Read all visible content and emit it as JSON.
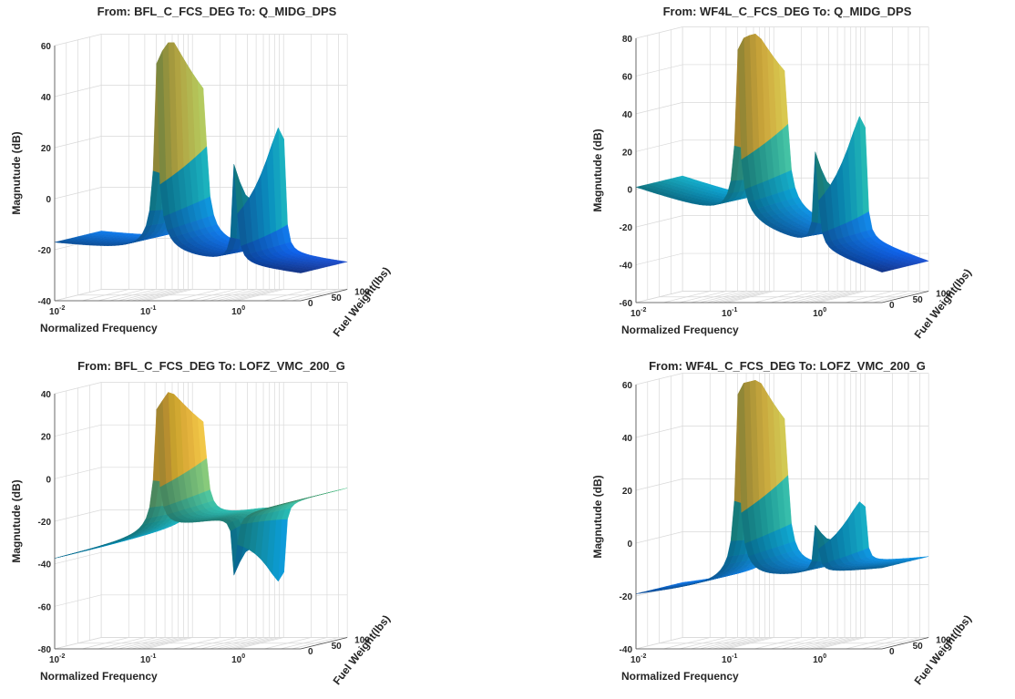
{
  "chart_data": [
    {
      "id": "p1",
      "type": "surface",
      "title": "From: BFL_C_FCS_DEG  To: Q_MIDG_DPS",
      "xlabel": "Normalized Frequency",
      "ylabel": "Fuel Weight(lbs)",
      "zlabel": "Magnutude (dB)",
      "x_scale": "log",
      "x_range": [
        0.01,
        5
      ],
      "x_ticks": [
        {
          "base": "10",
          "exp": "-2",
          "value": 0.01
        },
        {
          "base": "10",
          "exp": "-1",
          "value": 0.1
        },
        {
          "base": "10",
          "exp": "0",
          "value": 1
        }
      ],
      "y_range": [
        0,
        100
      ],
      "y_ticks": [
        "0",
        "50",
        "100"
      ],
      "z_range": [
        -40,
        60
      ],
      "z_ticks": [
        "-40",
        "-20",
        "0",
        "20",
        "40",
        "60"
      ],
      "colormap": "parula",
      "grid": true,
      "modes": [
        {
          "freq": 0.13,
          "peak_db": 62
        },
        {
          "freq": 0.95,
          "peak_db": 38
        }
      ],
      "low_freq_level_db": -18,
      "high_freq_level_db": -30
    },
    {
      "id": "p2",
      "type": "surface",
      "title": "From: WF4L_C_FCS_DEG  To: Q_MIDG_DPS",
      "xlabel": "Normalized Frequency",
      "ylabel": "Fuel Weight(lbs)",
      "zlabel": "Magnutude (dB)",
      "x_scale": "log",
      "x_range": [
        0.01,
        5
      ],
      "x_ticks": [
        {
          "base": "10",
          "exp": "-2",
          "value": 0.01
        },
        {
          "base": "10",
          "exp": "-1",
          "value": 0.1
        },
        {
          "base": "10",
          "exp": "0",
          "value": 1
        }
      ],
      "y_range": [
        0,
        100
      ],
      "y_ticks": [
        "0",
        "50",
        "100"
      ],
      "z_range": [
        -60,
        80
      ],
      "z_ticks": [
        "-60",
        "-40",
        "-20",
        "0",
        "20",
        "40",
        "60",
        "80"
      ],
      "colormap": "parula",
      "grid": true,
      "modes": [
        {
          "freq": 0.13,
          "peak_db": 85
        },
        {
          "freq": 0.95,
          "peak_db": 52
        }
      ],
      "low_freq_level_db": 0,
      "high_freq_level_db": -45
    },
    {
      "id": "p3",
      "type": "surface",
      "title": "From: BFL_C_FCS_DEG  To: LOFZ_VMC_200_G",
      "xlabel": "Normalized Frequency",
      "ylabel": "Fuel Weight(lbs)",
      "zlabel": "Magnutude (dB)",
      "x_scale": "log",
      "x_range": [
        0.01,
        5
      ],
      "x_ticks": [
        {
          "base": "10",
          "exp": "-2",
          "value": 0.01
        },
        {
          "base": "10",
          "exp": "-1",
          "value": 0.1
        },
        {
          "base": "10",
          "exp": "0",
          "value": 1
        }
      ],
      "y_range": [
        0,
        100
      ],
      "y_ticks": [
        "0",
        "50",
        "100"
      ],
      "z_range": [
        -80,
        40
      ],
      "z_ticks": [
        "-80",
        "-60",
        "-40",
        "-20",
        "0",
        "20",
        "40"
      ],
      "colormap": "parula",
      "grid": true,
      "modes": [
        {
          "freq": 0.13,
          "peak_db": 40
        },
        {
          "freq": 0.95,
          "peak_db": -65
        }
      ],
      "low_freq_level_db": -38,
      "high_freq_level_db": -10
    },
    {
      "id": "p4",
      "type": "surface",
      "title": "From: WF4L_C_FCS_DEG  To: LOFZ_VMC_200_G",
      "xlabel": "Normalized Frequency",
      "ylabel": "Fuel Weight(lbs)",
      "zlabel": "Magnutude (dB)",
      "x_scale": "log",
      "x_range": [
        0.01,
        5
      ],
      "x_ticks": [
        {
          "base": "10",
          "exp": "-2",
          "value": 0.01
        },
        {
          "base": "10",
          "exp": "-1",
          "value": 0.1
        },
        {
          "base": "10",
          "exp": "0",
          "value": 1
        }
      ],
      "y_range": [
        0,
        100
      ],
      "y_ticks": [
        "0",
        "50",
        "100"
      ],
      "z_range": [
        -40,
        60
      ],
      "z_ticks": [
        "-40",
        "-20",
        "0",
        "20",
        "40",
        "60"
      ],
      "colormap": "parula",
      "grid": true,
      "modes": [
        {
          "freq": 0.13,
          "peak_db": 65
        },
        {
          "freq": 0.95,
          "peak_db": 18
        }
      ],
      "low_freq_level_db": -20,
      "high_freq_level_db": -10
    }
  ]
}
